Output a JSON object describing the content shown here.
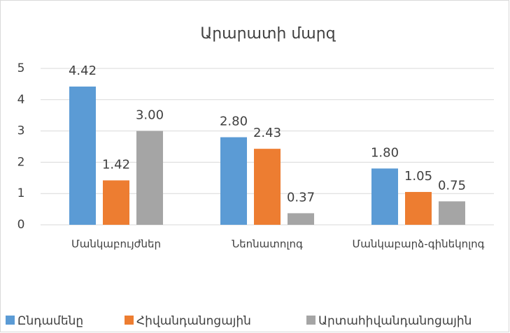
{
  "chart_data": {
    "type": "bar",
    "title": "Արարատի մարզ",
    "categories": [
      "Մանկաբույժներ",
      "Նեոնատոլոգ",
      "Մանկաբարձ-գինեկոլոգ"
    ],
    "series": [
      {
        "name": "Ընդամենը",
        "color": "#5b9bd5",
        "values": [
          4.42,
          2.8,
          1.8
        ],
        "value_labels": [
          "4.42",
          "2.80",
          "1.80"
        ]
      },
      {
        "name": "Հիվանդանոցային",
        "color": "#ed7d31",
        "values": [
          1.42,
          2.43,
          1.05
        ],
        "value_labels": [
          "1.42",
          "2.43",
          "1.05"
        ]
      },
      {
        "name": "Արտահիվանդանոցային",
        "color": "#a5a5a5",
        "values": [
          3.0,
          0.37,
          0.75
        ],
        "value_labels": [
          "3.00",
          "0.37",
          "0.75"
        ]
      }
    ],
    "ylim": [
      0,
      5
    ],
    "yticks": [
      0,
      1,
      2,
      3,
      4,
      5
    ],
    "grid": true,
    "legend": "bottom"
  }
}
